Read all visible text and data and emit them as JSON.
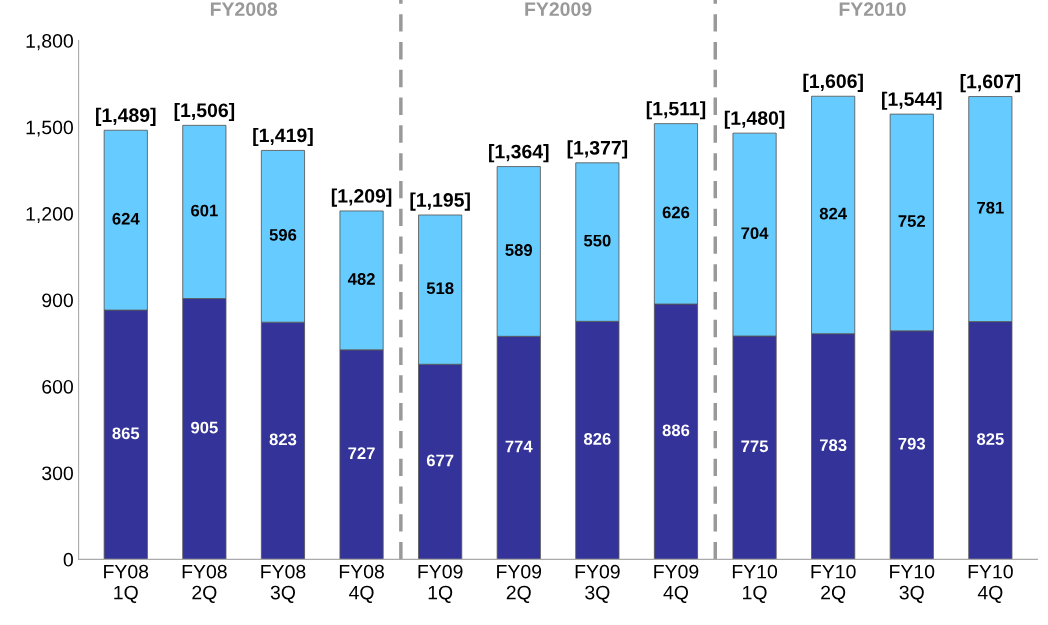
{
  "chart_data": {
    "type": "bar",
    "stacked": true,
    "data_labels": true,
    "categories": [
      "FY08\n1Q",
      "FY08\n2Q",
      "FY08\n3Q",
      "FY08\n4Q",
      "FY09\n1Q",
      "FY09\n2Q",
      "FY09\n3Q",
      "FY09\n4Q",
      "FY10\n1Q",
      "FY10\n2Q",
      "FY10\n3Q",
      "FY10\n4Q"
    ],
    "series": [
      {
        "color": "#333399",
        "values": [
          865,
          905,
          823,
          727,
          677,
          774,
          826,
          886,
          775,
          783,
          793,
          825
        ]
      },
      {
        "color": "#66ccff",
        "values": [
          624,
          601,
          596,
          482,
          518,
          589,
          550,
          626,
          704,
          824,
          752,
          781
        ]
      }
    ],
    "totals": [
      "[1,489]",
      "[1,506]",
      "[1,419]",
      "[1,209]",
      "[1,195]",
      "[1,364]",
      "[1,377]",
      "[1,511]",
      "[1,480]",
      "[1,606]",
      "[1,544]",
      "[1,607]"
    ],
    "ylim": [
      0,
      1800
    ],
    "yticks": [
      0,
      300,
      600,
      900,
      {
        "value": 1200,
        "label": "1,200"
      },
      {
        "value": 1500,
        "label": "1,500"
      },
      {
        "value": 1800,
        "label": "1,800"
      }
    ],
    "annotations": [
      "FY2008",
      "FY2009",
      "FY2010"
    ],
    "grid": false,
    "legend": false
  }
}
